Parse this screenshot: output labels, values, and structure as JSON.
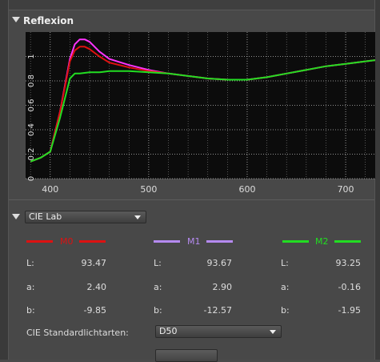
{
  "section": {
    "title": "Reflexion"
  },
  "chart_data": {
    "type": "line",
    "xlim": [
      375,
      730
    ],
    "ylim": [
      0,
      1.2
    ],
    "x_ticks": [
      "400",
      "500",
      "600",
      "700"
    ],
    "x_tick_values": [
      400,
      500,
      600,
      700
    ],
    "y_ticks": [
      "0",
      "0.2",
      "0.4",
      "0.6",
      "0.8",
      "1"
    ],
    "y_tick_values": [
      0,
      0.2,
      0.4,
      0.6,
      0.8,
      1.0
    ],
    "grid": true,
    "series": [
      {
        "color": "#ff33ff",
        "x": [
          380,
          390,
          400,
          410,
          420,
          425,
          430,
          435,
          440,
          450,
          460,
          480,
          500,
          520,
          540,
          560,
          580,
          600,
          620,
          640,
          660,
          680,
          700,
          720,
          730
        ],
        "y": [
          0.14,
          0.17,
          0.22,
          0.55,
          0.98,
          1.1,
          1.14,
          1.14,
          1.12,
          1.04,
          0.98,
          0.93,
          0.89,
          0.86,
          0.84,
          0.82,
          0.81,
          0.81,
          0.83,
          0.86,
          0.89,
          0.92,
          0.94,
          0.96,
          0.97
        ]
      },
      {
        "color": "#dd1111",
        "x": [
          380,
          390,
          400,
          410,
          420,
          425,
          430,
          435,
          440,
          450,
          460,
          480,
          500,
          520,
          540,
          560,
          580,
          600,
          620,
          640,
          660,
          680,
          700,
          720,
          730
        ],
        "y": [
          0.14,
          0.17,
          0.22,
          0.55,
          0.96,
          1.05,
          1.08,
          1.08,
          1.06,
          1.0,
          0.95,
          0.91,
          0.88,
          0.86,
          0.84,
          0.82,
          0.81,
          0.81,
          0.83,
          0.86,
          0.89,
          0.92,
          0.94,
          0.96,
          0.97
        ]
      },
      {
        "color": "#22dd22",
        "x": [
          380,
          390,
          400,
          410,
          420,
          425,
          430,
          440,
          450,
          460,
          480,
          500,
          520,
          540,
          560,
          580,
          600,
          620,
          640,
          660,
          680,
          700,
          720,
          730
        ],
        "y": [
          0.14,
          0.17,
          0.22,
          0.5,
          0.82,
          0.86,
          0.86,
          0.87,
          0.87,
          0.88,
          0.88,
          0.87,
          0.86,
          0.84,
          0.82,
          0.81,
          0.81,
          0.83,
          0.86,
          0.89,
          0.92,
          0.94,
          0.96,
          0.97
        ]
      }
    ]
  },
  "color_space": {
    "selected": "CIE Lab"
  },
  "measurements": [
    {
      "name": "M0",
      "color": "#dd1111",
      "L": "93.47",
      "a": "2.40",
      "b": "-9.85"
    },
    {
      "name": "M1",
      "color": "#b58af0",
      "L": "93.67",
      "a": "2.90",
      "b": "-12.57"
    },
    {
      "name": "M2",
      "color": "#22dd22",
      "L": "93.25",
      "a": "-0.16",
      "b": "-1.95"
    }
  ],
  "row_labels": {
    "L": "L:",
    "a": "a:",
    "b": "b:"
  },
  "illuminant": {
    "label": "CIE Standardlichtarten:",
    "selected": "D50"
  }
}
